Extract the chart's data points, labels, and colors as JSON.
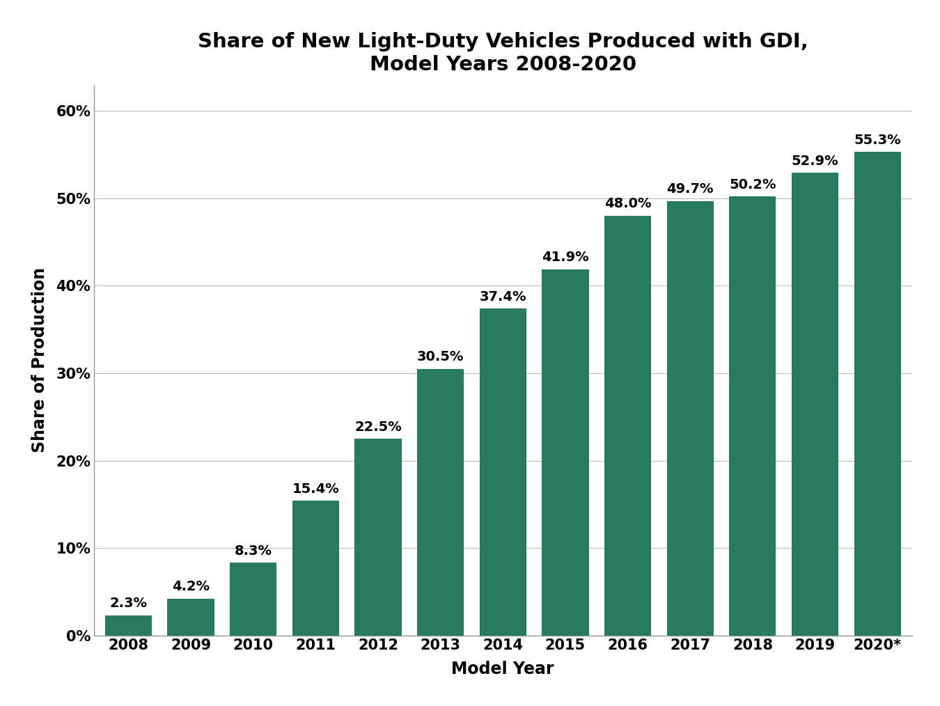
{
  "title": "Share of New Light-Duty Vehicles Produced with GDI,\nModel Years 2008-2020",
  "xlabel": "Model Year",
  "ylabel": "Share of Production",
  "categories": [
    "2008",
    "2009",
    "2010",
    "2011",
    "2012",
    "2013",
    "2014",
    "2015",
    "2016",
    "2017",
    "2018",
    "2019",
    "2020*"
  ],
  "values": [
    2.3,
    4.2,
    8.3,
    15.4,
    22.5,
    30.5,
    37.4,
    41.9,
    48.0,
    49.7,
    50.2,
    52.9,
    55.3
  ],
  "bar_color": "#267A5E",
  "ylim": [
    0,
    63
  ],
  "yticks": [
    0,
    10,
    20,
    30,
    40,
    50,
    60
  ],
  "ytick_labels": [
    "0%",
    "10%",
    "20%",
    "30%",
    "40%",
    "50%",
    "60%"
  ],
  "title_fontsize": 21,
  "axis_label_fontsize": 17,
  "tick_fontsize": 15,
  "bar_label_fontsize": 14,
  "background_color": "#ffffff",
  "grid_color": "#c0c0c0",
  "bar_width": 0.75
}
